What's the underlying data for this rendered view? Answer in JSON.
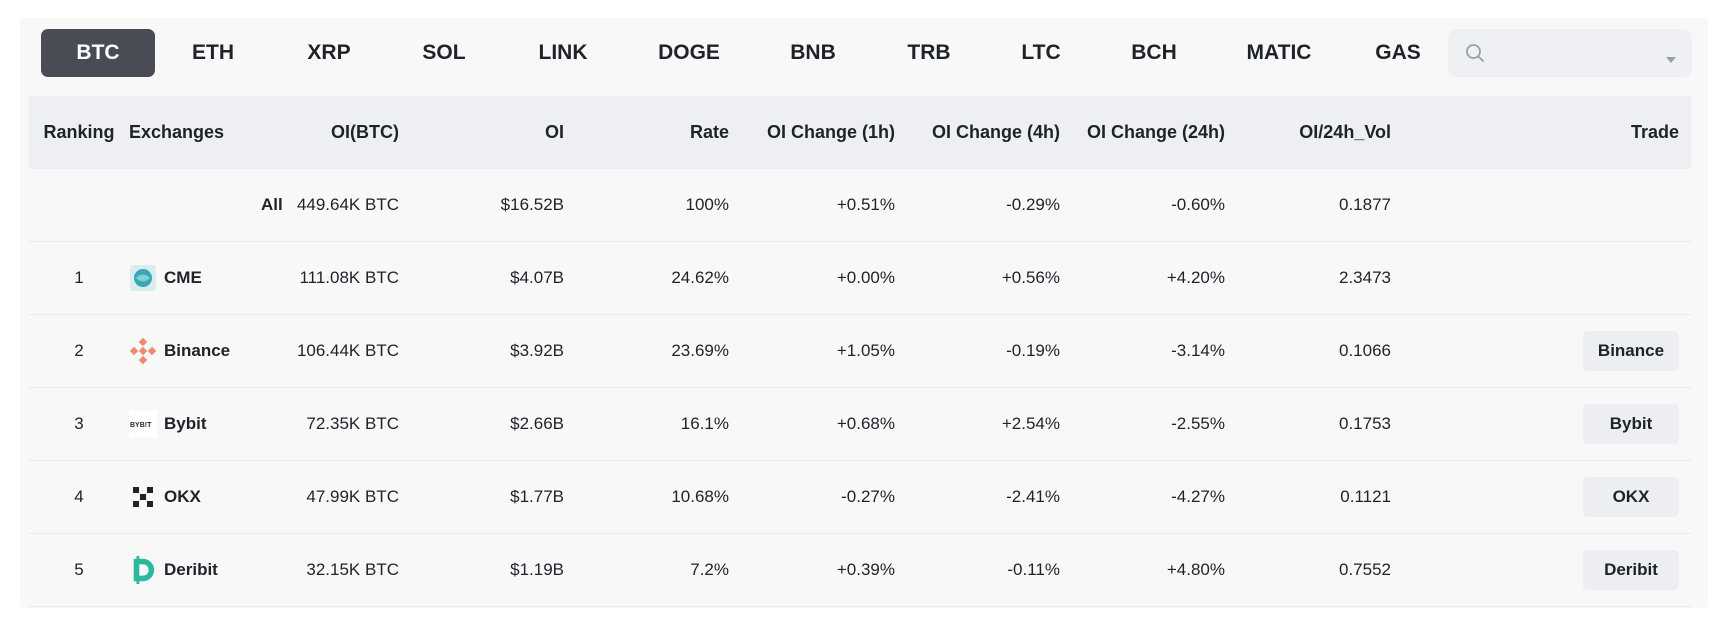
{
  "tabs": [
    "BTC",
    "ETH",
    "XRP",
    "SOL",
    "LINK",
    "DOGE",
    "BNB",
    "TRB",
    "LTC",
    "BCH",
    "MATIC",
    "GAS"
  ],
  "active_tab": "BTC",
  "search": {
    "placeholder": "",
    "value": "",
    "icons": [
      "search-icon",
      "caret-down-icon"
    ]
  },
  "colors": {
    "positive": "#2eaa8a",
    "negative": "#e64a4a",
    "active_tab_bg": "#4a4c55"
  },
  "table": {
    "headers": [
      "Ranking",
      "Exchanges",
      "OI(BTC)",
      "OI",
      "Rate",
      "OI Change (1h)",
      "OI Change (4h)",
      "OI Change (24h)",
      "OI/24h_Vol",
      "Trade"
    ],
    "rows": [
      {
        "rank": "",
        "exchange": "All",
        "logo": "",
        "oi_btc": "449.64K BTC",
        "oi": "$16.52B",
        "rate": "100%",
        "ch1h": "+0.51%",
        "ch4h": "-0.29%",
        "ch24h": "-0.60%",
        "vol": "0.1877",
        "trade": ""
      },
      {
        "rank": "1",
        "exchange": "CME",
        "logo": "cme-logo-icon",
        "oi_btc": "111.08K BTC",
        "oi": "$4.07B",
        "rate": "24.62%",
        "ch1h": "+0.00%",
        "ch4h": "+0.56%",
        "ch24h": "+4.20%",
        "vol": "2.3473",
        "trade": ""
      },
      {
        "rank": "2",
        "exchange": "Binance",
        "logo": "binance-logo-icon",
        "oi_btc": "106.44K BTC",
        "oi": "$3.92B",
        "rate": "23.69%",
        "ch1h": "+1.05%",
        "ch4h": "-0.19%",
        "ch24h": "-3.14%",
        "vol": "0.1066",
        "trade": "Binance"
      },
      {
        "rank": "3",
        "exchange": "Bybit",
        "logo": "bybit-logo-icon",
        "logo_text": "BYB!T",
        "oi_btc": "72.35K BTC",
        "oi": "$2.66B",
        "rate": "16.1%",
        "ch1h": "+0.68%",
        "ch4h": "+2.54%",
        "ch24h": "-2.55%",
        "vol": "0.1753",
        "trade": "Bybit"
      },
      {
        "rank": "4",
        "exchange": "OKX",
        "logo": "okx-logo-icon",
        "oi_btc": "47.99K BTC",
        "oi": "$1.77B",
        "rate": "10.68%",
        "ch1h": "-0.27%",
        "ch4h": "-2.41%",
        "ch24h": "-4.27%",
        "vol": "0.1121",
        "trade": "OKX"
      },
      {
        "rank": "5",
        "exchange": "Deribit",
        "logo": "deribit-logo-icon",
        "oi_btc": "32.15K BTC",
        "oi": "$1.19B",
        "rate": "7.2%",
        "ch1h": "+0.39%",
        "ch4h": "-0.11%",
        "ch24h": "+4.80%",
        "vol": "0.7552",
        "trade": "Deribit"
      }
    ]
  }
}
